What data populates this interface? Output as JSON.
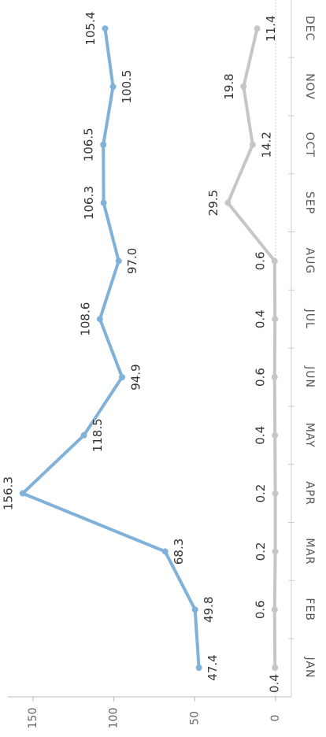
{
  "chart_data": {
    "type": "line",
    "categories": [
      "JAN",
      "FEB",
      "MAR",
      "APR",
      "MAY",
      "JUN",
      "JUL",
      "AUG",
      "SEP",
      "OCT",
      "NOV",
      "DEC"
    ],
    "series": [
      {
        "color": "#7fb1d9",
        "values": [
          47.4,
          49.8,
          68.3,
          156.3,
          118.5,
          94.9,
          108.6,
          97.0,
          106.3,
          106.5,
          100.5,
          105.4
        ],
        "value_labels": [
          "47.4",
          "49.8",
          "68.3",
          "156.3",
          "118.5",
          "94.9",
          "108.6",
          "97.0",
          "106.3",
          "106.5",
          "100.5",
          "105.4"
        ]
      },
      {
        "color": "#c6c6c6",
        "values": [
          0.4,
          0.6,
          0.2,
          0.2,
          0.4,
          0.6,
          0.4,
          0.6,
          29.5,
          14.2,
          19.8,
          11.4
        ],
        "value_labels": [
          "0.4",
          "0.6",
          "0.2",
          "0.2",
          "0.4",
          "0.6",
          "0.4",
          "0.6",
          "29.5",
          "14.2",
          "19.8",
          "11.4"
        ]
      }
    ],
    "ylim": [
      0,
      165
    ],
    "yticks": [
      0,
      50,
      100,
      150
    ]
  }
}
